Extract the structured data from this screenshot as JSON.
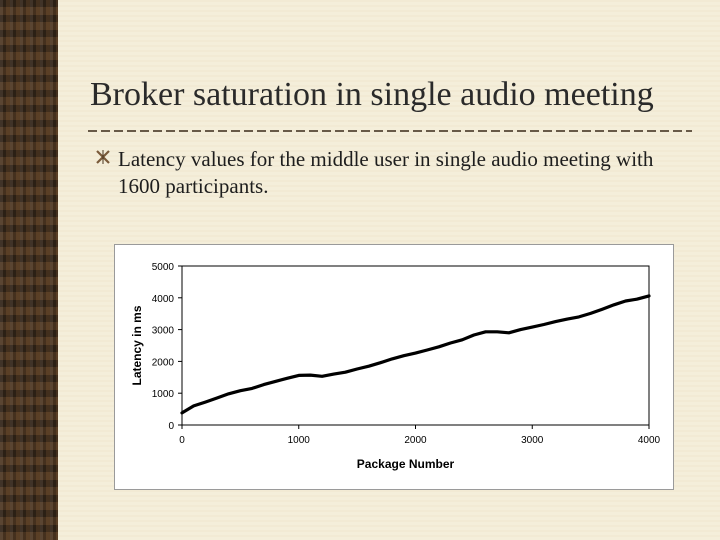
{
  "slide": {
    "title": "Broker saturation in single audio meeting",
    "bullet": "Latency values for the middle user in single audio meeting with 1600 participants."
  },
  "colors": {
    "background": "#f4edd8",
    "title": "#2a2a2a",
    "divider": "#3b2a1a",
    "line": "#000000"
  },
  "icons": {
    "bullet": "ornamental-cross-icon"
  },
  "chart_data": {
    "type": "line",
    "title": "",
    "xlabel": "Package Number",
    "ylabel": "Latency in ms",
    "xlim": [
      0,
      4000
    ],
    "ylim": [
      0,
      5000
    ],
    "xticks": [
      0,
      1000,
      2000,
      3000,
      4000
    ],
    "yticks": [
      0,
      1000,
      2000,
      3000,
      4000,
      5000
    ],
    "grid": false,
    "legend": "none",
    "series": [
      {
        "x": [
          0,
          100,
          200,
          300,
          400,
          500,
          600,
          700,
          800,
          900,
          1000,
          1100,
          1200,
          1300,
          1400,
          1500,
          1600,
          1700,
          1800,
          1900,
          2000,
          2100,
          2200,
          2300,
          2400,
          2500,
          2600,
          2700,
          2800,
          2900,
          3000,
          3100,
          3200,
          3300,
          3400,
          3500,
          3600,
          3700,
          3800,
          3900,
          4000
        ],
        "y": [
          380,
          600,
          720,
          850,
          980,
          1080,
          1150,
          1270,
          1370,
          1470,
          1560,
          1570,
          1530,
          1600,
          1660,
          1760,
          1850,
          1960,
          2080,
          2180,
          2260,
          2360,
          2460,
          2580,
          2680,
          2830,
          2930,
          2930,
          2900,
          3000,
          3080,
          3160,
          3250,
          3330,
          3400,
          3510,
          3640,
          3780,
          3900,
          3960,
          4060
        ]
      }
    ]
  }
}
